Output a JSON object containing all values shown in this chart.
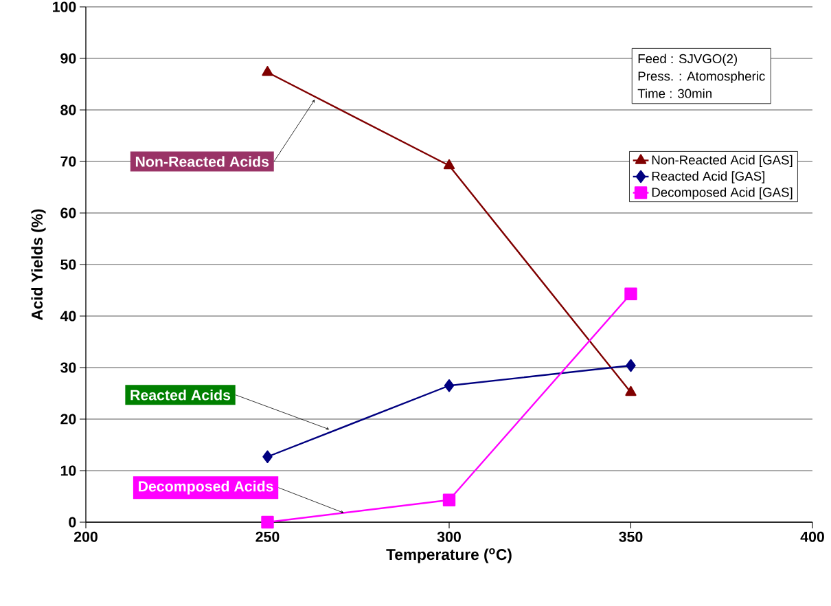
{
  "chart_data": {
    "type": "line",
    "xlabel": "Temperature ($^{o}$C)",
    "ylabel": "Acid Yields (%)",
    "x": [
      250,
      300,
      350
    ],
    "series": [
      {
        "name": "Non-Reacted Acid [GAS]",
        "color": "#800000",
        "marker": "triangle",
        "values": [
          87.3,
          69.2,
          25.2
        ]
      },
      {
        "name": "Reacted Acid [GAS]",
        "color": "#000080",
        "marker": "diamond",
        "values": [
          12.7,
          26.5,
          30.4
        ]
      },
      {
        "name": "Decomposed Acid [GAS]",
        "color": "#ff00ff",
        "marker": "square",
        "values": [
          0,
          4.3,
          44.3
        ]
      }
    ],
    "xlim": [
      200,
      400
    ],
    "xticks": [
      200,
      250,
      300,
      350,
      400
    ],
    "ylim": [
      0,
      100
    ],
    "yticks": [
      0,
      10,
      20,
      30,
      40,
      50,
      60,
      70,
      80,
      90,
      100
    ],
    "grid": "y",
    "legend": "top right",
    "line_style": "solid",
    "annotations": [
      {
        "text": "Non-Reacted Acids",
        "x": 263,
        "y": 82
      },
      {
        "text": "Reacted Acids",
        "x": 267,
        "y": 18
      },
      {
        "text": "Decomposed Acids",
        "x": 271,
        "y": 1.8
      },
      "Feed : SJVGO(2)",
      "Press. : Atomospheric",
      "Time : 30min"
    ]
  }
}
